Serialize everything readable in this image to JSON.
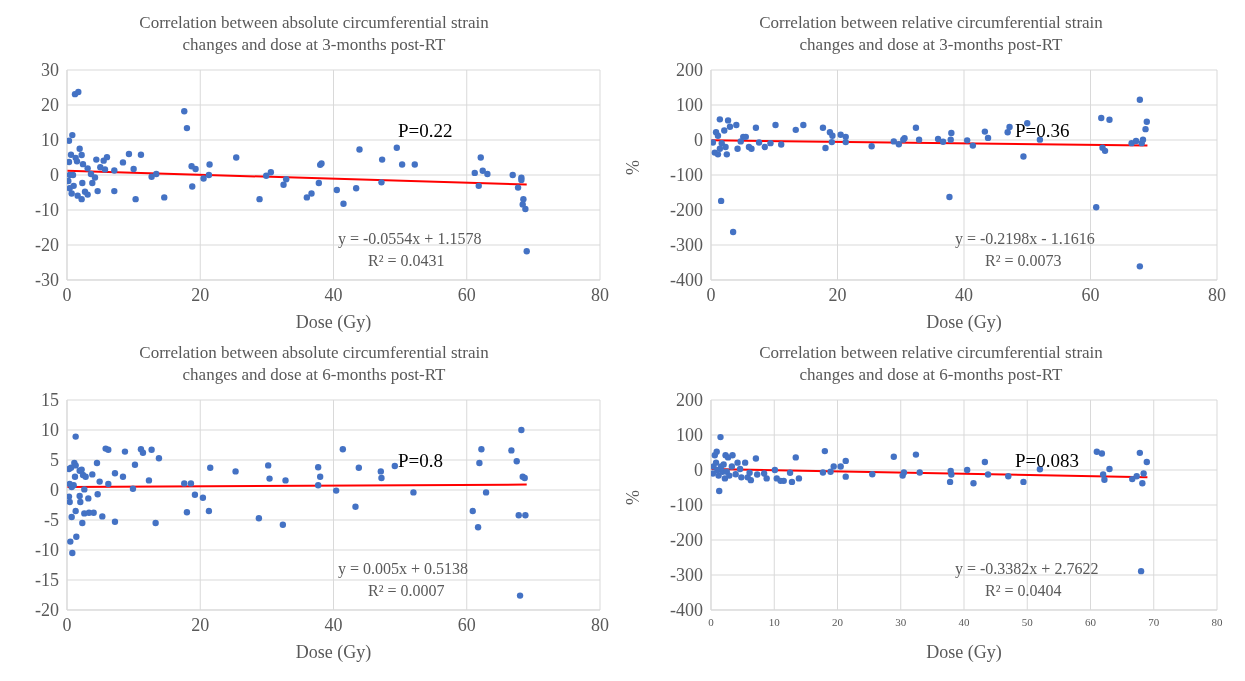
{
  "chart_data": [
    {
      "type": "scatter",
      "title": "Correlation between absolute circumferential strain changes and dose at 3-months post-RT",
      "xlabel": "Dose (Gy)",
      "xlim": [
        0,
        80
      ],
      "xticks": [
        0,
        20,
        40,
        60,
        80
      ],
      "ylim": [
        -30,
        30
      ],
      "yticks": [
        -30,
        -20,
        -10,
        0,
        10,
        20,
        30
      ],
      "grid": true,
      "annotations": [
        "P=0.22",
        "y = -0.0554x + 1.1578",
        "R² = 0.0431"
      ],
      "series": [
        {
          "marker": "circle",
          "color": "#4472c4",
          "x": [
            0.3,
            0.6,
            0.3,
            0.8,
            1.2,
            1.7,
            1.3,
            1.5,
            1.9,
            2.2,
            2.4,
            0.4,
            0.9,
            0.2,
            0.4,
            0.7,
            1.0,
            1.6,
            2.2,
            2.3,
            2.7,
            3.1,
            3.1,
            3.6,
            3.8,
            4.2,
            4.4,
            4.6,
            5.0,
            5.5,
            6.0,
            5.7,
            7.1,
            7.1,
            8.4,
            9.3,
            10.0,
            10.3,
            11.1,
            12.7,
            13.4,
            14.6,
            17.6,
            18.0,
            18.7,
            18.8,
            19.3,
            20.5,
            21.3,
            21.4,
            25.4,
            28.9,
            29.9,
            30.6,
            32.5,
            32.9,
            36.0,
            36.7,
            37.8,
            38.0,
            38.2,
            40.5,
            41.5,
            43.4,
            43.9,
            47.2,
            47.3,
            49.5,
            50.3,
            52.2,
            61.2,
            61.8,
            62.1,
            62.4,
            63.1,
            66.9,
            67.7,
            68.2,
            68.2,
            68.5,
            68.4,
            68.8,
            69.0
          ],
          "values": [
            9.8,
            5.8,
            3.7,
            11.4,
            23.1,
            23.7,
            4.9,
            3.9,
            7.5,
            5.7,
            3.1,
            0,
            0,
            -1.7,
            -3.8,
            -5.3,
            -3.1,
            -5.9,
            -6.9,
            -2.3,
            -4.8,
            -5.6,
            1.9,
            0.3,
            -2.3,
            -0.7,
            4.4,
            -4.6,
            2.2,
            4.1,
            5.1,
            1.6,
            1.3,
            -4.6,
            3.6,
            6.0,
            1.7,
            -6.9,
            5.8,
            -0.5,
            0.3,
            -6.4,
            18.2,
            13.4,
            2.5,
            -3.3,
            1.7,
            -1.0,
            0,
            3.0,
            5.0,
            -6.9,
            -0.2,
            0.8,
            -2.8,
            -1.2,
            -6.4,
            -5.3,
            -2.3,
            2.9,
            3.3,
            -4.3,
            -8.2,
            -3.8,
            7.3,
            -2.1,
            4.4,
            7.8,
            3.0,
            3.0,
            0.6,
            -3.1,
            5.0,
            1.2,
            0.3,
            0,
            -3.6,
            -0.8,
            -1.4,
            -6.9,
            -8.4,
            -9.7,
            -21.8
          ]
        },
        {
          "type": "line",
          "color": "#ff0000",
          "x": [
            0,
            69
          ],
          "values": [
            1.2,
            -2.7
          ]
        }
      ]
    },
    {
      "type": "scatter",
      "title": "Correlation between relative circumferential strain changes and dose at 3-months post-RT",
      "xlabel": "Dose (Gy)",
      "ylabel": "%",
      "xlim": [
        0,
        80
      ],
      "xticks": [
        0,
        20,
        40,
        60,
        80
      ],
      "ylim": [
        -400,
        200
      ],
      "yticks": [
        -400,
        -300,
        -200,
        -100,
        0,
        100,
        200
      ],
      "grid": true,
      "annotations": [
        "P=0.36",
        "y = -0.2198x - 1.1616",
        "R² = 0.0073"
      ],
      "series": [
        {
          "marker": "circle",
          "color": "#4472c4",
          "x": [
            0.3,
            0.8,
            1.1,
            1.4,
            2.1,
            2.7,
            3.0,
            4.0,
            0.6,
            1.1,
            1.4,
            1.7,
            2.3,
            2.5,
            1.6,
            3.5,
            4.2,
            4.7,
            5.1,
            5.5,
            6.0,
            6.4,
            7.1,
            7.6,
            8.5,
            9.4,
            10.2,
            11.1,
            13.4,
            14.6,
            17.7,
            18.1,
            18.8,
            19.1,
            19.2,
            20.5,
            21.3,
            21.3,
            25.4,
            28.9,
            29.7,
            30.4,
            30.6,
            32.4,
            32.9,
            35.9,
            36.7,
            37.7,
            37.9,
            38.0,
            40.5,
            41.4,
            43.3,
            43.8,
            46.9,
            47.2,
            49.4,
            50.0,
            52.0,
            60.9,
            61.7,
            61.9,
            62.3,
            63.0,
            66.5,
            67.2,
            67.8,
            67.8,
            68.1,
            68.3,
            68.7,
            68.9
          ],
          "values": [
            -7,
            22,
            12,
            59,
            27,
            56,
            38,
            43,
            -36,
            -41,
            -25,
            -9,
            -20,
            -41,
            -174,
            -263,
            -25,
            -4,
            9,
            9,
            -20,
            -25,
            35,
            -7,
            -20,
            -9,
            43,
            -13,
            29,
            43,
            35,
            -23,
            22,
            -6,
            12,
            15,
            9,
            -6,
            -18,
            -4,
            -12,
            1,
            5,
            35,
            1,
            3,
            -5,
            -163,
            1,
            20,
            -1,
            -16,
            24,
            6,
            22,
            37,
            -47,
            48,
            1,
            -192,
            63,
            -22,
            -31,
            58,
            -9,
            -3,
            115,
            -361,
            -9,
            1,
            31,
            52
          ]
        },
        {
          "type": "line",
          "color": "#ff0000",
          "x": [
            0,
            69
          ],
          "values": [
            -1,
            -16
          ]
        }
      ]
    },
    {
      "type": "scatter",
      "title": "Correlation between absolute circumferential strain changes and dose at 6-months post-RT",
      "xlabel": "Dose (Gy)",
      "xlim": [
        0,
        80
      ],
      "xticks": [
        0,
        20,
        40,
        60,
        80
      ],
      "ylim": [
        -20,
        15
      ],
      "yticks": [
        -20,
        -15,
        -10,
        -5,
        0,
        5,
        10,
        15
      ],
      "grid": true,
      "annotations": [
        "P=0.8",
        "y = 0.005x + 0.5138",
        "R² = 0.0007"
      ],
      "series": [
        {
          "marker": "circle",
          "color": "#4472c4",
          "x": [
            0.3,
            0.6,
            0.4,
            0.7,
            1.0,
            0.3,
            0.4,
            0.7,
            0.5,
            0.8,
            1.3,
            1.1,
            1.3,
            1.2,
            1.9,
            2.2,
            1.3,
            1.4,
            1.9,
            2.0,
            2.3,
            2.4,
            2.8,
            2.6,
            2.6,
            3.2,
            3.3,
            3.8,
            4.0,
            4.5,
            4.6,
            4.9,
            5.3,
            5.8,
            6.2,
            6.2,
            7.2,
            7.2,
            8.4,
            8.7,
            9.9,
            10.2,
            11.1,
            11.4,
            12.3,
            12.7,
            13.3,
            13.8,
            17.6,
            18.0,
            18.6,
            19.2,
            20.4,
            21.3,
            21.5,
            25.3,
            28.8,
            30.2,
            30.4,
            32.4,
            32.8,
            37.7,
            37.7,
            38.0,
            40.4,
            41.4,
            43.3,
            43.8,
            47.1,
            47.2,
            49.2,
            52.0,
            60.9,
            61.7,
            61.9,
            62.2,
            62.9,
            66.7,
            67.5,
            67.8,
            68.0,
            68.2,
            68.4,
            68.7,
            68.8
          ],
          "values": [
            3.5,
            3.7,
            1.0,
            0.5,
            0.8,
            -1.1,
            -2.0,
            -4.5,
            -8.6,
            -10.5,
            8.9,
            4.5,
            4.1,
            2.2,
            3.2,
            3.4,
            -3.5,
            -7.8,
            -1.0,
            -2.0,
            -5.5,
            2.5,
            2.2,
            0.1,
            -3.9,
            -1.4,
            -3.8,
            2.6,
            -3.8,
            4.5,
            -0.7,
            1.4,
            -4.4,
            6.9,
            6.7,
            1.0,
            2.8,
            -5.3,
            2.2,
            6.4,
            0.2,
            4.2,
            6.8,
            6.2,
            1.6,
            6.7,
            -5.5,
            5.3,
            1.1,
            -3.7,
            1.1,
            -0.8,
            -1.3,
            -3.5,
            3.7,
            3.1,
            -4.7,
            4.1,
            1.9,
            -5.8,
            1.6,
            3.8,
            0.8,
            2.2,
            -0.1,
            6.8,
            -2.8,
            3.7,
            3.1,
            2.0,
            4.0,
            -0.4,
            -3.5,
            -6.2,
            4.5,
            6.8,
            -0.4,
            6.6,
            4.8,
            -4.2,
            -17.6,
            10.0,
            2.2,
            2.0,
            -4.2
          ]
        },
        {
          "type": "line",
          "color": "#ff0000",
          "x": [
            0,
            69
          ],
          "values": [
            0.5,
            0.9
          ]
        }
      ]
    },
    {
      "type": "scatter",
      "title": "Correlation between relative circumferential strain changes and dose at 6-months post-RT",
      "xlabel": "Dose (Gy)",
      "ylabel": "%",
      "xlim": [
        0,
        80
      ],
      "xticks": [
        0,
        10,
        20,
        30,
        40,
        50,
        60,
        70,
        80
      ],
      "ylim": [
        -400,
        200
      ],
      "yticks": [
        -400,
        -300,
        -200,
        -100,
        0,
        100,
        200
      ],
      "grid": true,
      "annotations": [
        "P=0.083",
        "y = -0.3382x + 2.7622",
        "R² = 0.0404"
      ],
      "series": [
        {
          "marker": "circle",
          "color": "#4472c4",
          "x": [
            0.3,
            0.4,
            0.6,
            0.9,
            0.8,
            1.0,
            1.2,
            1.3,
            1.5,
            1.6,
            1.8,
            2.0,
            2.2,
            2.3,
            2.5,
            2.7,
            2.9,
            3.3,
            3.4,
            3.9,
            4.2,
            4.6,
            4.8,
            5.4,
            5.8,
            6.1,
            6.3,
            7.1,
            7.3,
            8.4,
            8.8,
            10.1,
            10.4,
            11.0,
            11.5,
            12.5,
            12.8,
            13.4,
            13.9,
            17.7,
            18.0,
            18.9,
            19.4,
            20.5,
            21.3,
            21.3,
            25.5,
            28.9,
            30.3,
            30.5,
            32.4,
            33.0,
            37.8,
            37.9,
            38.0,
            40.5,
            41.5,
            43.3,
            43.8,
            47.0,
            49.4,
            52.0,
            61.0,
            61.8,
            62.0,
            62.2,
            63.0,
            66.6,
            67.3,
            67.8,
            68.0,
            68.2,
            68.4,
            68.9
          ],
          "values": [
            -10,
            10,
            42,
            52,
            21,
            0,
            -16,
            -60,
            94,
            10,
            -5,
            16,
            -24,
            42,
            -5,
            36,
            -16,
            10,
            42,
            -12,
            21,
            3,
            -21,
            21,
            -21,
            -8,
            -29,
            33,
            -13,
            -10,
            -24,
            0,
            -24,
            -31,
            -31,
            -8,
            -34,
            36,
            -24,
            -7,
            54,
            -5,
            10,
            10,
            26,
            -19,
            -12,
            38,
            -16,
            -7,
            44,
            -7,
            -34,
            -3,
            -13,
            0,
            -38,
            23,
            -13,
            -18,
            -34,
            2,
            52,
            47,
            -13,
            -28,
            3,
            -26,
            -18,
            49,
            -289,
            -38,
            -10,
            23
          ]
        },
        {
          "type": "line",
          "color": "#ff0000",
          "x": [
            0,
            69
          ],
          "values": [
            3,
            -21
          ]
        }
      ]
    }
  ]
}
